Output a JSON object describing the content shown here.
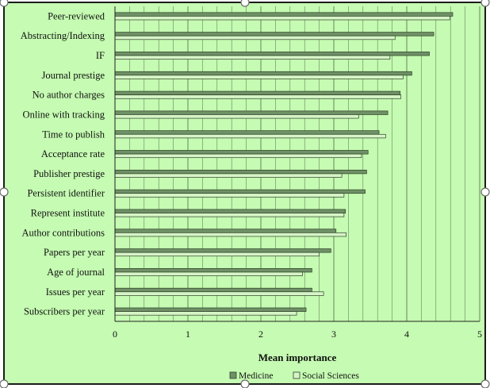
{
  "colors": {
    "plot_background": "#c5fbb2",
    "gridline": "#5c7a55",
    "medicine": "#6e9165",
    "social_sciences": "#d6f5c6",
    "bar_stroke": "#2f3f2b",
    "frame": "#1b1b1b"
  },
  "chart_data": {
    "type": "bar",
    "orientation": "horizontal",
    "categories": [
      "Peer-reviewed",
      "Abstracting/Indexing",
      "IF",
      "Journal prestige",
      "No author charges",
      "Online with tracking",
      "Time to publish",
      "Acceptance rate",
      "Publisher prestige",
      "Persistent identifier",
      "Represent institute",
      "Author contributions",
      "Papers per year",
      "Age of journal",
      "Issues per year",
      "Subscribers per year"
    ],
    "series": [
      {
        "name": "Medicine",
        "values": [
          4.63,
          4.37,
          4.31,
          4.07,
          3.91,
          3.74,
          3.62,
          3.47,
          3.45,
          3.43,
          3.16,
          3.03,
          2.96,
          2.7,
          2.7,
          2.62
        ]
      },
      {
        "name": "Social Sciences",
        "values": [
          4.59,
          3.84,
          3.77,
          3.95,
          3.92,
          3.34,
          3.71,
          3.38,
          3.11,
          3.14,
          3.14,
          3.17,
          2.8,
          2.57,
          2.86,
          2.49
        ]
      }
    ],
    "xlabel": "Mean importance",
    "ylabel": "",
    "xlim": [
      0,
      5
    ],
    "x_ticks": [
      "0",
      "1",
      "2",
      "3",
      "4",
      "5"
    ],
    "grid": "vertical",
    "legend_position": "bottom"
  }
}
